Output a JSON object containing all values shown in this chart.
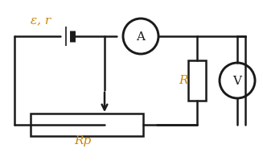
{
  "bg_color": "#ffffff",
  "wire_color": "#1a1a1a",
  "wire_lw": 1.8,
  "component_color": "#1a1a1a",
  "label_color": "#c8860a",
  "label_emf": "ε, r",
  "label_R": "R",
  "label_Rp": "Rp",
  "label_A": "A",
  "label_V": "V",
  "figsize": [
    3.27,
    2.0
  ],
  "dpi": 100
}
